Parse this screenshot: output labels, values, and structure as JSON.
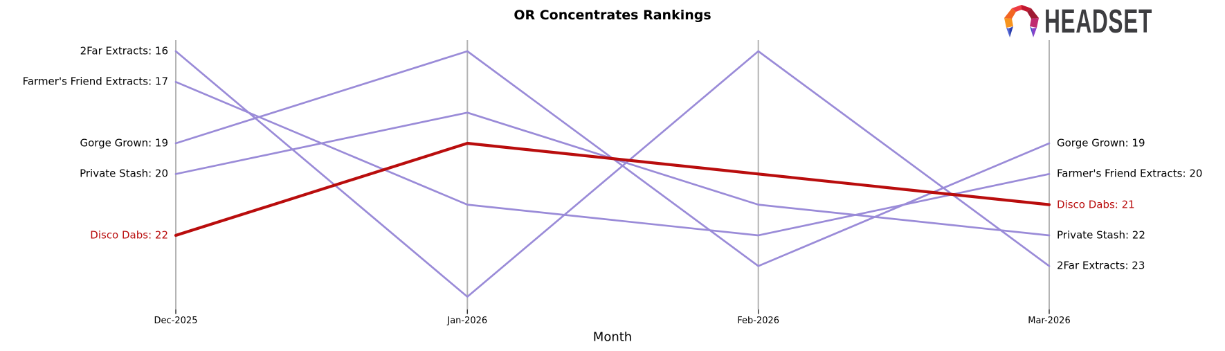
{
  "title": "OR Concentrates Rankings",
  "logo": {
    "text": "HEADSET",
    "mark": "headset-faceted-arch"
  },
  "chart_data": {
    "type": "line",
    "variant": "rank-bump",
    "title": "OR Concentrates Rankings",
    "xlabel": "Month",
    "categories": [
      "Dec-2025",
      "Jan-2026",
      "Feb-2026",
      "Mar-2026"
    ],
    "rank_axis": {
      "direction": "down",
      "best_visible": 16,
      "worst_visible": 24
    },
    "grid": "vertical-axes-only",
    "legend": "none",
    "series": [
      {
        "name": "2Far Extracts",
        "values": [
          16,
          24,
          16,
          23
        ],
        "color": "#9a8bd8",
        "width": 2.7,
        "highlight": false
      },
      {
        "name": "Farmer's Friend Extracts",
        "values": [
          17,
          21,
          22,
          20
        ],
        "color": "#9a8bd8",
        "width": 2.7,
        "highlight": false
      },
      {
        "name": "Gorge Grown",
        "values": [
          19,
          16,
          23,
          19
        ],
        "color": "#9a8bd8",
        "width": 2.7,
        "highlight": false
      },
      {
        "name": "Private Stash",
        "values": [
          20,
          18,
          21,
          22
        ],
        "color": "#9a8bd8",
        "width": 2.7,
        "highlight": false
      },
      {
        "name": "Disco Dabs",
        "values": [
          22,
          19,
          20,
          21
        ],
        "color": "#b90d0d",
        "width": 4.2,
        "highlight": true
      }
    ],
    "left_labels": [
      {
        "text": "2Far Extracts: 16",
        "rank": 16,
        "color": "#000000"
      },
      {
        "text": "Farmer's Friend Extracts: 17",
        "rank": 17,
        "color": "#000000"
      },
      {
        "text": "Gorge Grown: 19",
        "rank": 19,
        "color": "#000000"
      },
      {
        "text": "Private Stash: 20",
        "rank": 20,
        "color": "#000000"
      },
      {
        "text": "Disco Dabs: 22",
        "rank": 22,
        "color": "#b90d0d"
      }
    ],
    "right_labels": [
      {
        "text": "Gorge Grown: 19",
        "rank": 19,
        "color": "#000000"
      },
      {
        "text": "Farmer's Friend Extracts: 20",
        "rank": 20,
        "color": "#000000"
      },
      {
        "text": "Disco Dabs: 21",
        "rank": 21,
        "color": "#b90d0d"
      },
      {
        "text": "Private Stash: 22",
        "rank": 22,
        "color": "#000000"
      },
      {
        "text": "2Far Extracts: 23",
        "rank": 23,
        "color": "#000000"
      }
    ]
  },
  "colors": {
    "background": "#ffffff",
    "line_default": "#9a8bd8",
    "line_highlight": "#b90d0d",
    "axis_line": "#b4b4b4",
    "tick_mark": "#333333",
    "text": "#000000",
    "logo_text": "#3d3d40"
  }
}
